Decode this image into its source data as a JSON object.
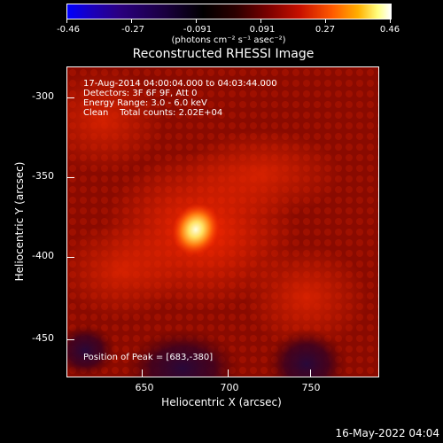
{
  "colorbar": {
    "ticks": [
      "-0.46",
      "-0.27",
      "-0.091",
      "0.091",
      "0.27",
      "0.46"
    ],
    "units": "(photons cm⁻² s⁻¹ asec⁻²)"
  },
  "title": "Reconstructed RHESSI Image",
  "info": {
    "time": "17-Aug-2014 04:00:04.000 to 04:03:44.000",
    "detectors": "Detectors: 3F 6F 9F, Att 0",
    "energy": "Energy Range: 3.0 - 6.0 keV",
    "clean": "Clean    Total counts: 2.02E+04",
    "peak": "Position of Peak = [683,-380]"
  },
  "axes": {
    "xlabel": "Heliocentric X (arcsec)",
    "ylabel": "Heliocentric Y (arcsec)",
    "xticks": [
      "650",
      "700",
      "750"
    ],
    "yticks": [
      "-300",
      "-350",
      "-400",
      "-450"
    ]
  },
  "footer": {
    "date": "16-May-2022 04:04"
  },
  "colors": {
    "background": "#000000",
    "foreground": "#ffffff",
    "image_base": "#8a0a00"
  }
}
